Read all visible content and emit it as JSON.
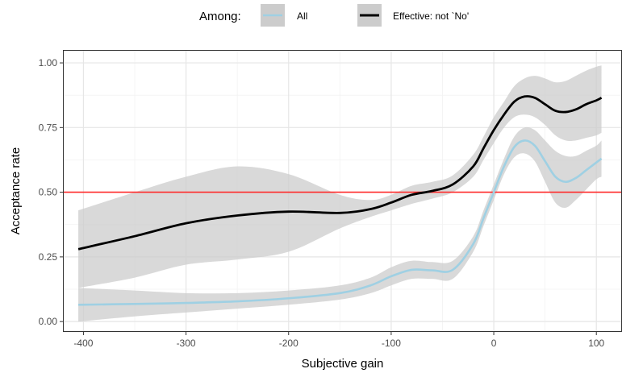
{
  "chart_data": {
    "type": "line",
    "xlabel": "Subjective gain",
    "ylabel": "Acceptance rate",
    "xlim": [
      -420,
      125
    ],
    "ylim": [
      -0.04,
      1.05
    ],
    "x_ticks": [
      -400,
      -300,
      -200,
      -100,
      0,
      100
    ],
    "x_tick_labels": [
      "-400",
      "-300",
      "-200",
      "-100",
      "0",
      "100"
    ],
    "y_ticks": [
      0.0,
      0.25,
      0.5,
      0.75,
      1.0
    ],
    "y_tick_labels": [
      "0.00",
      "0.25",
      "0.50",
      "0.75",
      "1.00"
    ],
    "grid": true,
    "legend": {
      "title": "Among:",
      "position": "top",
      "entries": [
        "All",
        "Effective: not `No'"
      ]
    },
    "reference_line": {
      "y": 0.5,
      "color": "#ff2a2a"
    },
    "ribbon_color": "#cccccc",
    "series": [
      {
        "name": "All",
        "color": "#9fd0e3",
        "x": [
          -405,
          -350,
          -300,
          -250,
          -200,
          -150,
          -120,
          -100,
          -80,
          -60,
          -40,
          -20,
          -10,
          0,
          10,
          20,
          30,
          40,
          50,
          60,
          70,
          80,
          90,
          100,
          105
        ],
        "y": [
          0.065,
          0.068,
          0.072,
          0.078,
          0.09,
          0.11,
          0.14,
          0.175,
          0.2,
          0.198,
          0.2,
          0.3,
          0.4,
          0.5,
          0.6,
          0.675,
          0.7,
          0.68,
          0.62,
          0.56,
          0.54,
          0.555,
          0.585,
          0.615,
          0.63
        ],
        "lower": [
          0.0,
          0.02,
          0.035,
          0.05,
          0.065,
          0.085,
          0.11,
          0.14,
          0.165,
          0.165,
          0.165,
          0.27,
          0.37,
          0.47,
          0.57,
          0.635,
          0.65,
          0.62,
          0.54,
          0.46,
          0.44,
          0.47,
          0.51,
          0.55,
          0.56
        ],
        "upper": [
          0.13,
          0.12,
          0.11,
          0.11,
          0.12,
          0.14,
          0.17,
          0.21,
          0.235,
          0.23,
          0.235,
          0.33,
          0.43,
          0.53,
          0.63,
          0.715,
          0.75,
          0.74,
          0.7,
          0.66,
          0.64,
          0.64,
          0.66,
          0.68,
          0.7
        ]
      },
      {
        "name": "Effective: not `No'",
        "color": "#000000",
        "x": [
          -405,
          -350,
          -300,
          -250,
          -200,
          -150,
          -120,
          -100,
          -80,
          -60,
          -40,
          -20,
          -10,
          0,
          10,
          20,
          30,
          40,
          50,
          60,
          70,
          80,
          90,
          100,
          105
        ],
        "y": [
          0.28,
          0.33,
          0.38,
          0.41,
          0.425,
          0.42,
          0.435,
          0.46,
          0.49,
          0.505,
          0.53,
          0.6,
          0.67,
          0.74,
          0.8,
          0.85,
          0.87,
          0.865,
          0.84,
          0.815,
          0.81,
          0.82,
          0.84,
          0.855,
          0.865
        ],
        "lower": [
          0.13,
          0.17,
          0.22,
          0.24,
          0.27,
          0.36,
          0.405,
          0.43,
          0.455,
          0.475,
          0.5,
          0.56,
          0.625,
          0.69,
          0.75,
          0.79,
          0.8,
          0.79,
          0.76,
          0.72,
          0.7,
          0.7,
          0.71,
          0.72,
          0.73
        ],
        "upper": [
          0.43,
          0.5,
          0.56,
          0.6,
          0.57,
          0.49,
          0.47,
          0.49,
          0.525,
          0.54,
          0.565,
          0.645,
          0.715,
          0.79,
          0.85,
          0.91,
          0.94,
          0.95,
          0.94,
          0.925,
          0.93,
          0.95,
          0.97,
          0.985,
          0.99
        ]
      }
    ]
  }
}
